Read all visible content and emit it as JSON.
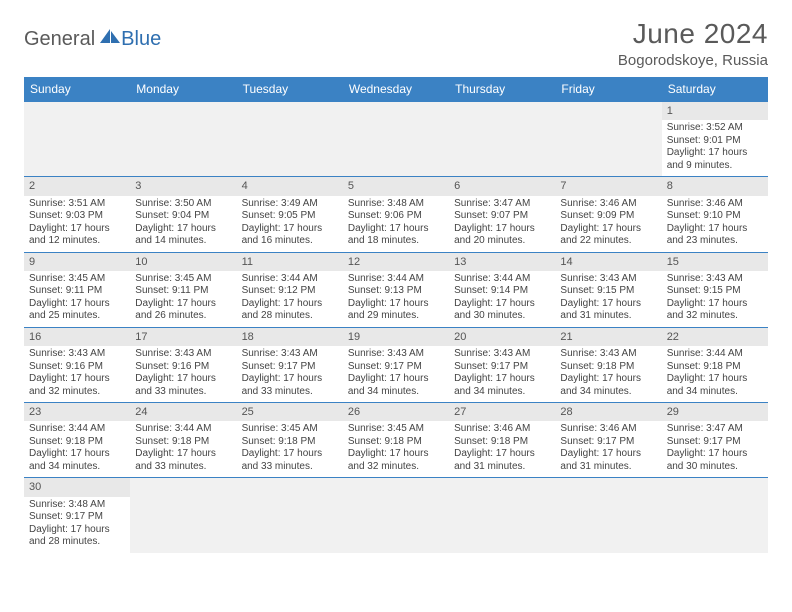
{
  "brand": {
    "part1": "General",
    "part2": "Blue"
  },
  "title": "June 2024",
  "location": "Bogorodskoye, Russia",
  "colors": {
    "header_bg": "#3b82c4",
    "header_text": "#ffffff",
    "daynum_bg": "#e8e8e8",
    "border": "#3b82c4",
    "text": "#444444",
    "title_text": "#5a5a5a"
  },
  "weekdays": [
    "Sunday",
    "Monday",
    "Tuesday",
    "Wednesday",
    "Thursday",
    "Friday",
    "Saturday"
  ],
  "days": {
    "1": {
      "sunrise": "3:52 AM",
      "sunset": "9:01 PM",
      "daylight": "17 hours and 9 minutes."
    },
    "2": {
      "sunrise": "3:51 AM",
      "sunset": "9:03 PM",
      "daylight": "17 hours and 12 minutes."
    },
    "3": {
      "sunrise": "3:50 AM",
      "sunset": "9:04 PM",
      "daylight": "17 hours and 14 minutes."
    },
    "4": {
      "sunrise": "3:49 AM",
      "sunset": "9:05 PM",
      "daylight": "17 hours and 16 minutes."
    },
    "5": {
      "sunrise": "3:48 AM",
      "sunset": "9:06 PM",
      "daylight": "17 hours and 18 minutes."
    },
    "6": {
      "sunrise": "3:47 AM",
      "sunset": "9:07 PM",
      "daylight": "17 hours and 20 minutes."
    },
    "7": {
      "sunrise": "3:46 AM",
      "sunset": "9:09 PM",
      "daylight": "17 hours and 22 minutes."
    },
    "8": {
      "sunrise": "3:46 AM",
      "sunset": "9:10 PM",
      "daylight": "17 hours and 23 minutes."
    },
    "9": {
      "sunrise": "3:45 AM",
      "sunset": "9:11 PM",
      "daylight": "17 hours and 25 minutes."
    },
    "10": {
      "sunrise": "3:45 AM",
      "sunset": "9:11 PM",
      "daylight": "17 hours and 26 minutes."
    },
    "11": {
      "sunrise": "3:44 AM",
      "sunset": "9:12 PM",
      "daylight": "17 hours and 28 minutes."
    },
    "12": {
      "sunrise": "3:44 AM",
      "sunset": "9:13 PM",
      "daylight": "17 hours and 29 minutes."
    },
    "13": {
      "sunrise": "3:44 AM",
      "sunset": "9:14 PM",
      "daylight": "17 hours and 30 minutes."
    },
    "14": {
      "sunrise": "3:43 AM",
      "sunset": "9:15 PM",
      "daylight": "17 hours and 31 minutes."
    },
    "15": {
      "sunrise": "3:43 AM",
      "sunset": "9:15 PM",
      "daylight": "17 hours and 32 minutes."
    },
    "16": {
      "sunrise": "3:43 AM",
      "sunset": "9:16 PM",
      "daylight": "17 hours and 32 minutes."
    },
    "17": {
      "sunrise": "3:43 AM",
      "sunset": "9:16 PM",
      "daylight": "17 hours and 33 minutes."
    },
    "18": {
      "sunrise": "3:43 AM",
      "sunset": "9:17 PM",
      "daylight": "17 hours and 33 minutes."
    },
    "19": {
      "sunrise": "3:43 AM",
      "sunset": "9:17 PM",
      "daylight": "17 hours and 34 minutes."
    },
    "20": {
      "sunrise": "3:43 AM",
      "sunset": "9:17 PM",
      "daylight": "17 hours and 34 minutes."
    },
    "21": {
      "sunrise": "3:43 AM",
      "sunset": "9:18 PM",
      "daylight": "17 hours and 34 minutes."
    },
    "22": {
      "sunrise": "3:44 AM",
      "sunset": "9:18 PM",
      "daylight": "17 hours and 34 minutes."
    },
    "23": {
      "sunrise": "3:44 AM",
      "sunset": "9:18 PM",
      "daylight": "17 hours and 34 minutes."
    },
    "24": {
      "sunrise": "3:44 AM",
      "sunset": "9:18 PM",
      "daylight": "17 hours and 33 minutes."
    },
    "25": {
      "sunrise": "3:45 AM",
      "sunset": "9:18 PM",
      "daylight": "17 hours and 33 minutes."
    },
    "26": {
      "sunrise": "3:45 AM",
      "sunset": "9:18 PM",
      "daylight": "17 hours and 32 minutes."
    },
    "27": {
      "sunrise": "3:46 AM",
      "sunset": "9:18 PM",
      "daylight": "17 hours and 31 minutes."
    },
    "28": {
      "sunrise": "3:46 AM",
      "sunset": "9:17 PM",
      "daylight": "17 hours and 31 minutes."
    },
    "29": {
      "sunrise": "3:47 AM",
      "sunset": "9:17 PM",
      "daylight": "17 hours and 30 minutes."
    },
    "30": {
      "sunrise": "3:48 AM",
      "sunset": "9:17 PM",
      "daylight": "17 hours and 28 minutes."
    }
  },
  "labels": {
    "sunrise": "Sunrise:",
    "sunset": "Sunset:",
    "daylight": "Daylight:"
  },
  "grid": [
    [
      null,
      null,
      null,
      null,
      null,
      null,
      "1"
    ],
    [
      "2",
      "3",
      "4",
      "5",
      "6",
      "7",
      "8"
    ],
    [
      "9",
      "10",
      "11",
      "12",
      "13",
      "14",
      "15"
    ],
    [
      "16",
      "17",
      "18",
      "19",
      "20",
      "21",
      "22"
    ],
    [
      "23",
      "24",
      "25",
      "26",
      "27",
      "28",
      "29"
    ],
    [
      "30",
      null,
      null,
      null,
      null,
      null,
      null
    ]
  ]
}
